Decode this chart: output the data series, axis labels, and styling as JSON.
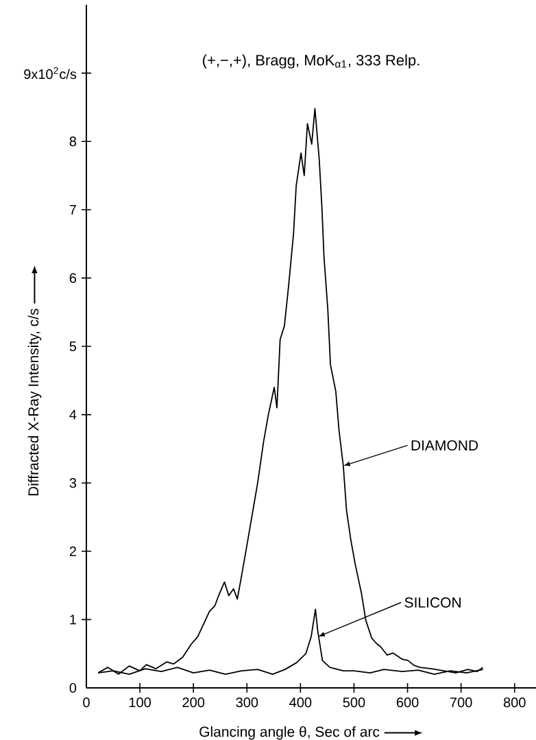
{
  "chart_data": {
    "type": "line",
    "title": "(+,−,+), Bragg, MoK$_{α1}$, 333 Relp.",
    "xlabel": "Glancing angle θ, Sec of arc",
    "ylabel": "Diffracted X-Ray Intensity, c/s",
    "series": [
      {
        "color": "#000000",
        "x": [
          22,
          40,
          60,
          80,
          100,
          112,
          130,
          150,
          163,
          180,
          196,
          208,
          220,
          230,
          240,
          247,
          258,
          266,
          275,
          282,
          289,
          298,
          309,
          320,
          331,
          340,
          351,
          356,
          362,
          370,
          378,
          387,
          392,
          401,
          407,
          413,
          421,
          427,
          435,
          440,
          444,
          451,
          456,
          466,
          472,
          480,
          486,
          494,
          502,
          508,
          514,
          522,
          533,
          542,
          550,
          562,
          573,
          590,
          601,
          612,
          623,
          645,
          668,
          690,
          713,
          730,
          741
        ],
        "values": [
          0.22,
          0.3,
          0.2,
          0.32,
          0.25,
          0.34,
          0.28,
          0.38,
          0.35,
          0.45,
          0.64,
          0.75,
          0.95,
          1.12,
          1.2,
          1.35,
          1.55,
          1.35,
          1.45,
          1.3,
          1.6,
          2.0,
          2.5,
          3.0,
          3.6,
          4.0,
          4.4,
          4.1,
          5.1,
          5.3,
          5.9,
          6.65,
          7.35,
          7.83,
          7.5,
          8.26,
          7.96,
          8.48,
          7.74,
          7.04,
          6.3,
          5.55,
          4.73,
          4.34,
          3.77,
          3.25,
          2.6,
          2.17,
          1.82,
          1.6,
          1.38,
          0.99,
          0.73,
          0.65,
          0.6,
          0.48,
          0.51,
          0.42,
          0.4,
          0.33,
          0.3,
          0.28,
          0.25,
          0.22,
          0.27,
          0.24,
          0.3
        ]
      },
      {
        "color": "#000000",
        "x": [
          22,
          50,
          80,
          110,
          140,
          170,
          200,
          230,
          260,
          290,
          320,
          348,
          371,
          393,
          410,
          420,
          428,
          432,
          441,
          455,
          480,
          500,
          530,
          556,
          590,
          620,
          650,
          680,
          710,
          741
        ],
        "values": [
          0.22,
          0.25,
          0.2,
          0.28,
          0.24,
          0.3,
          0.22,
          0.26,
          0.2,
          0.25,
          0.27,
          0.2,
          0.27,
          0.37,
          0.5,
          0.75,
          1.15,
          0.85,
          0.4,
          0.3,
          0.25,
          0.25,
          0.22,
          0.27,
          0.24,
          0.26,
          0.2,
          0.25,
          0.22,
          0.27
        ]
      }
    ],
    "annotations": [
      {
        "text": "DIAMOND",
        "x": 480,
        "y": 3.25
      },
      {
        "text": "SILICON",
        "x": 433,
        "y": 0.75
      }
    ],
    "xlim": [
      0,
      840
    ],
    "ylim": [
      0,
      10
    ],
    "xticks": [
      0,
      100,
      200,
      300,
      400,
      500,
      600,
      700,
      800
    ],
    "yticks": [
      0,
      1,
      2,
      3,
      4,
      5,
      6,
      7,
      8,
      {
        "value": 9,
        "label": "9x10$^{2}$c/s"
      }
    ],
    "grid": false,
    "legend": false,
    "marker": "none",
    "line_style": "solid"
  }
}
